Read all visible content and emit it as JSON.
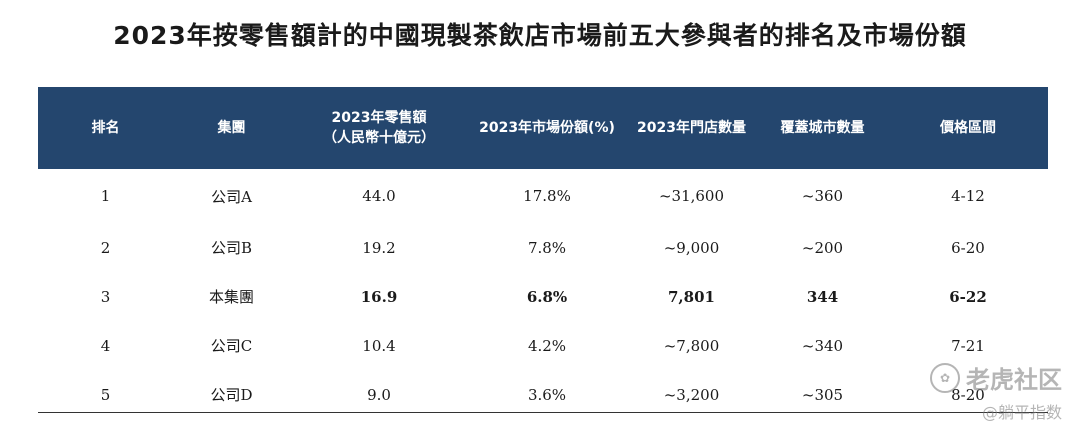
{
  "title": "2023年按零售額計的中國現製茶飲店市場前五大參與者的排名及市場份額",
  "table": {
    "headers": [
      {
        "line1": "排名",
        "line2": ""
      },
      {
        "line1": "集團",
        "line2": ""
      },
      {
        "line1": "2023年零售額",
        "line2": "（人民幣十億元）"
      },
      {
        "line1": "2023年市場份額(%)",
        "line2": ""
      },
      {
        "line1": "2023年門店數量",
        "line2": ""
      },
      {
        "line1": "覆蓋城市數量",
        "line2": ""
      },
      {
        "line1": "價格區間",
        "line2": ""
      }
    ],
    "rows": [
      [
        "1",
        "公司A",
        "44.0",
        "17.8%",
        "~31,600",
        "~360",
        "4-12"
      ],
      [
        "2",
        "公司B",
        "19.2",
        "7.8%",
        "~9,000",
        "~200",
        "6-20"
      ],
      [
        "3",
        "本集團",
        "16.9",
        "6.8%",
        "7,801",
        "344",
        "6-22"
      ],
      [
        "4",
        "公司C",
        "10.4",
        "4.2%",
        "~7,800",
        "~340",
        "7-21"
      ],
      [
        "5",
        "公司D",
        "9.0",
        "3.6%",
        "~3,200",
        "~305",
        "8-20"
      ]
    ]
  },
  "watermark": {
    "line1": "老虎社区",
    "line2": "@躺平指数",
    "logo_text": "✿"
  }
}
